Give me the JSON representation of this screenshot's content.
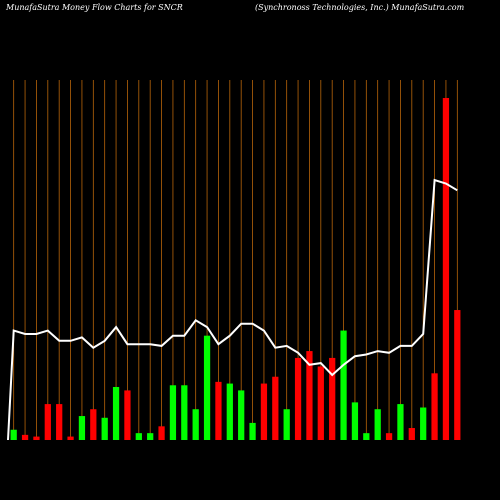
{
  "title_left": "MunafaSutra  Money Flow  Charts for SNCR",
  "title_right": "(Synchronoss Technologies,  Inc.) MunafaSutra.com",
  "chart_data": {
    "type": "bar",
    "background": "#000000",
    "grid_color": "#b8650a",
    "up_color": "#00ff00",
    "down_color": "#ff0000",
    "line_color": "#ffffff",
    "grid": true,
    "y_range": [
      0,
      100
    ],
    "categories": [
      "",
      "",
      "",
      "",
      "",
      "",
      "",
      "",
      "",
      "",
      "",
      "",
      "",
      "",
      "",
      "",
      "",
      "",
      "",
      "",
      "",
      "",
      "",
      "",
      "",
      "",
      "",
      "",
      "",
      "",
      "",
      "",
      "",
      "",
      "",
      "",
      "",
      "",
      "",
      "",
      "",
      ""
    ],
    "bars": [
      {
        "value": 3,
        "direction": "up"
      },
      {
        "value": 1.5,
        "direction": "down"
      },
      {
        "value": 1,
        "direction": "down"
      },
      {
        "value": 10.5,
        "direction": "down"
      },
      {
        "value": 10.5,
        "direction": "down"
      },
      {
        "value": 1,
        "direction": "down"
      },
      {
        "value": 7,
        "direction": "up"
      },
      {
        "value": 9,
        "direction": "down"
      },
      {
        "value": 6.5,
        "direction": "up"
      },
      {
        "value": 15.5,
        "direction": "up"
      },
      {
        "value": 14.5,
        "direction": "down"
      },
      {
        "value": 2,
        "direction": "up"
      },
      {
        "value": 2,
        "direction": "up"
      },
      {
        "value": 4,
        "direction": "down"
      },
      {
        "value": 16,
        "direction": "up"
      },
      {
        "value": 16,
        "direction": "up"
      },
      {
        "value": 9,
        "direction": "up"
      },
      {
        "value": 30.5,
        "direction": "up"
      },
      {
        "value": 17,
        "direction": "down"
      },
      {
        "value": 16.5,
        "direction": "up"
      },
      {
        "value": 14.5,
        "direction": "up"
      },
      {
        "value": 5,
        "direction": "up"
      },
      {
        "value": 16.5,
        "direction": "down"
      },
      {
        "value": 18.5,
        "direction": "down"
      },
      {
        "value": 9,
        "direction": "up"
      },
      {
        "value": 24,
        "direction": "down"
      },
      {
        "value": 26,
        "direction": "down"
      },
      {
        "value": 21.5,
        "direction": "down"
      },
      {
        "value": 24,
        "direction": "down"
      },
      {
        "value": 32,
        "direction": "up"
      },
      {
        "value": 11,
        "direction": "up"
      },
      {
        "value": 2,
        "direction": "up"
      },
      {
        "value": 9,
        "direction": "up"
      },
      {
        "value": 2,
        "direction": "down"
      },
      {
        "value": 10.5,
        "direction": "up"
      },
      {
        "value": 3.5,
        "direction": "down"
      },
      {
        "value": 9.5,
        "direction": "up"
      },
      {
        "value": 19.5,
        "direction": "down"
      },
      {
        "value": 100,
        "direction": "down"
      },
      {
        "value": 38,
        "direction": "down"
      }
    ],
    "line": [
      32,
      31,
      31,
      32,
      29,
      29,
      30,
      27,
      29,
      33,
      28,
      28,
      28,
      27.5,
      30.5,
      30.5,
      35,
      33,
      28,
      30.5,
      34,
      34,
      32,
      27,
      27.5,
      25.5,
      22,
      22.5,
      19,
      22,
      24.5,
      25,
      26,
      25.5,
      27.5,
      27.5,
      31,
      76,
      75,
      73
    ]
  }
}
